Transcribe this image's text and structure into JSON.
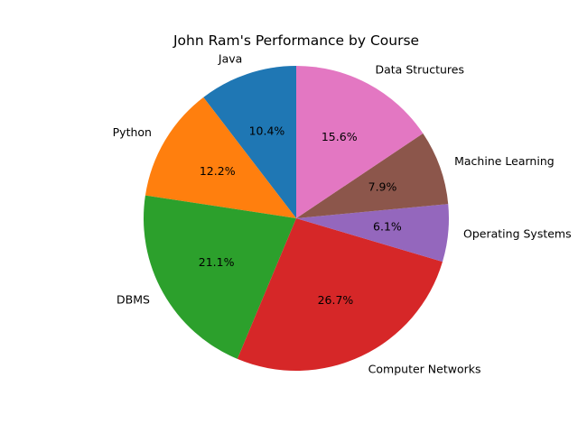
{
  "chart_data": {
    "type": "pie",
    "title": "John Ram's Performance by Course",
    "start_angle_deg": 90,
    "direction": "counterclockwise",
    "slices": [
      {
        "label": "Java",
        "value": 10.4,
        "pct_label": "10.4%",
        "color": "#1f77b4"
      },
      {
        "label": "Python",
        "value": 12.2,
        "pct_label": "12.2%",
        "color": "#ff7f0e"
      },
      {
        "label": "DBMS",
        "value": 21.1,
        "pct_label": "21.1%",
        "color": "#2ca02c"
      },
      {
        "label": "Computer Networks",
        "value": 26.7,
        "pct_label": "26.7%",
        "color": "#d62728"
      },
      {
        "label": "Operating Systems",
        "value": 6.1,
        "pct_label": "6.1%",
        "color": "#9467bd"
      },
      {
        "label": "Machine Learning",
        "value": 7.9,
        "pct_label": "7.9%",
        "color": "#8c564b"
      },
      {
        "label": "Data Structures",
        "value": 15.6,
        "pct_label": "15.6%",
        "color": "#e377c2"
      }
    ]
  }
}
